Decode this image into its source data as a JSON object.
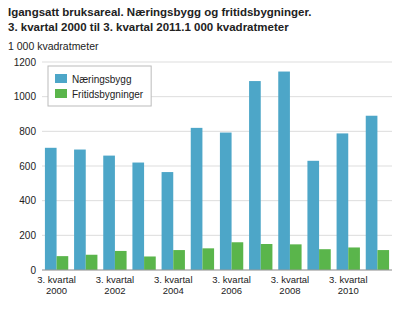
{
  "chart_data": {
    "type": "bar",
    "title": "Igangsatt bruksareal. Næringsbygg og fritidsbygninger.",
    "subtitle": "3. kvartal 2000 til 3. kvartal 2011.1 000 kvadratmeter",
    "ylabel": "1 000 kvadratmeter",
    "categories": [
      "3. kvartal\n2000",
      null,
      "3. kvartal\n2002",
      null,
      "3. kvartal\n2004",
      null,
      "3. kvartal\n2006",
      null,
      "3. kvartal\n2008",
      null,
      "3. kvartal\n2010",
      null
    ],
    "series": [
      {
        "name": "Næringsbygg",
        "color": "#4da6c8",
        "values": [
          705,
          695,
          660,
          620,
          565,
          820,
          793,
          1090,
          1145,
          630,
          788,
          890
        ]
      },
      {
        "name": "Fritidsbygninger",
        "color": "#5ab54b",
        "values": [
          80,
          88,
          110,
          78,
          115,
          125,
          160,
          150,
          148,
          120,
          130,
          115
        ]
      }
    ],
    "ylim": [
      0,
      1200
    ],
    "yticks": [
      0,
      200,
      400,
      600,
      800,
      1000,
      1200
    ],
    "grid": true,
    "legend": "upper left"
  }
}
